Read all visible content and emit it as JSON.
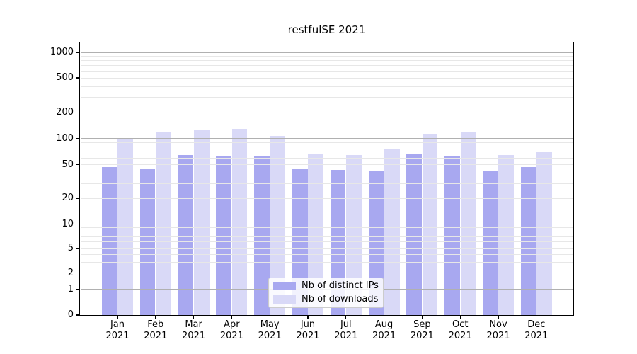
{
  "chart_data": {
    "type": "bar",
    "title": "restfulSE 2021",
    "categories": [
      "Jan 2021",
      "Feb 2021",
      "Mar 2021",
      "Apr 2021",
      "May 2021",
      "Jun 2021",
      "Jul 2021",
      "Aug 2021",
      "Sep 2021",
      "Oct 2021",
      "Nov 2021",
      "Dec 2021"
    ],
    "series": [
      {
        "name": "Nb of distinct IPs",
        "color": "#a8a8f0",
        "values": [
          47,
          44,
          65,
          63,
          63,
          44,
          43,
          42,
          66,
          63,
          42,
          47
        ]
      },
      {
        "name": "Nb of downloads",
        "color": "#d9d9f7",
        "values": [
          102,
          119,
          129,
          130,
          108,
          66,
          65,
          76,
          114,
          118,
          65,
          70
        ]
      }
    ],
    "xlabel": "",
    "ylabel": "",
    "y_axis": {
      "scale": "symlog",
      "range": [
        0,
        1300
      ],
      "ticks": [
        0,
        1,
        2,
        5,
        10,
        20,
        50,
        100,
        200,
        500,
        1000
      ],
      "major_gridlines": [
        1,
        10,
        100,
        1000
      ],
      "minor_gridlines": [
        2,
        3,
        4,
        5,
        6,
        7,
        8,
        9,
        20,
        30,
        40,
        50,
        60,
        70,
        80,
        90,
        200,
        300,
        400,
        500,
        600,
        700,
        800,
        900
      ]
    },
    "grid": {
      "on": true,
      "major_color": "#b0b0b0",
      "minor_color": "#e7e7e7",
      "drawn_above_bars": true
    },
    "legend": {
      "position": "lower center inside plot",
      "entries": [
        "Nb of distinct IPs",
        "Nb of downloads"
      ]
    }
  }
}
